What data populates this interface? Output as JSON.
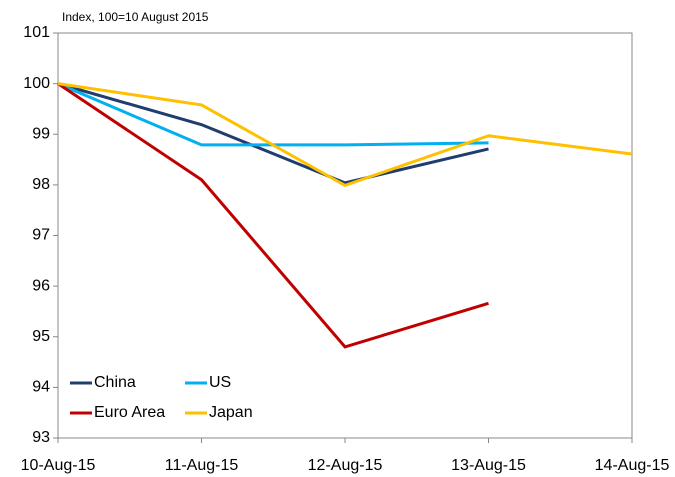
{
  "chart_data": {
    "type": "line",
    "subtitle": "Index, 100=10 August 2015",
    "categories": [
      "10-Aug-15",
      "11-Aug-15",
      "12-Aug-15",
      "13-Aug-15",
      "14-Aug-15"
    ],
    "series": [
      {
        "name": "China",
        "color": "#1f3d6e",
        "values": [
          100,
          99.19,
          98.04,
          98.71,
          null
        ]
      },
      {
        "name": "US",
        "color": "#00b0f0",
        "values": [
          100,
          98.79,
          98.79,
          98.83,
          null
        ]
      },
      {
        "name": "Euro Area",
        "color": "#c00000",
        "values": [
          100,
          98.1,
          94.8,
          95.66,
          null
        ]
      },
      {
        "name": "Japan",
        "color": "#ffc000",
        "values": [
          100,
          99.58,
          97.99,
          98.97,
          98.61
        ]
      }
    ],
    "ylim": [
      93,
      101
    ],
    "yticks": [
      93,
      94,
      95,
      96,
      97,
      98,
      99,
      100,
      101
    ],
    "grid": false,
    "legend": "lower left"
  }
}
